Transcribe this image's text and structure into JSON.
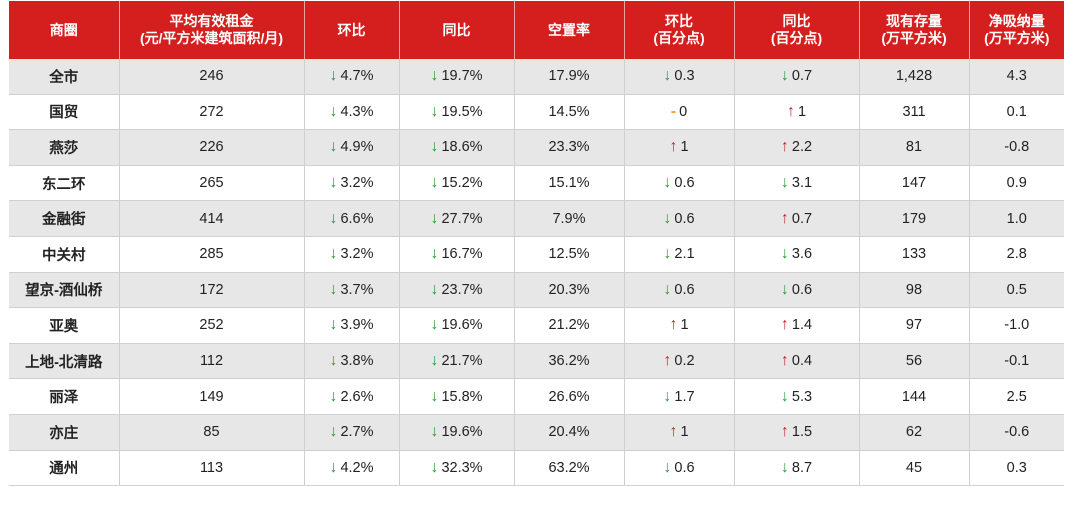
{
  "colors": {
    "header_bg": "#d51f1f",
    "down": "#2a9d3a",
    "up": "#c4262e",
    "flat": "#f0a030",
    "row_shade": "#e7e7e7"
  },
  "headers": [
    [
      "商圈"
    ],
    [
      "平均有效租金",
      "(元/平方米建筑面积/月)"
    ],
    [
      "环比"
    ],
    [
      "同比"
    ],
    [
      "空置率"
    ],
    [
      "环比",
      "(百分点)"
    ],
    [
      "同比",
      "(百分点)"
    ],
    [
      "现有存量",
      "(万平方米)"
    ],
    [
      "净吸纳量",
      "(万平方米)"
    ]
  ],
  "rows": [
    {
      "area": "全市",
      "rent": "246",
      "rent_mom": {
        "dir": "down",
        "val": "4.7%"
      },
      "rent_yoy": {
        "dir": "down",
        "val": "19.7%"
      },
      "vacancy": "17.9%",
      "vac_mom": {
        "dir": "down",
        "val": "0.3"
      },
      "vac_yoy": {
        "dir": "down",
        "val": "0.7"
      },
      "stock": "1,428",
      "absorption": "4.3"
    },
    {
      "area": "国贸",
      "rent": "272",
      "rent_mom": {
        "dir": "down",
        "val": "4.3%"
      },
      "rent_yoy": {
        "dir": "down",
        "val": "19.5%"
      },
      "vacancy": "14.5%",
      "vac_mom": {
        "dir": "flat",
        "val": "0"
      },
      "vac_yoy": {
        "dir": "up",
        "val": "1"
      },
      "stock": "311",
      "absorption": "0.1"
    },
    {
      "area": "燕莎",
      "rent": "226",
      "rent_mom": {
        "dir": "down",
        "val": "4.9%"
      },
      "rent_yoy": {
        "dir": "down",
        "val": "18.6%"
      },
      "vacancy": "23.3%",
      "vac_mom": {
        "dir": "up",
        "val": "1"
      },
      "vac_yoy": {
        "dir": "up",
        "val": "2.2"
      },
      "stock": "81",
      "absorption": "-0.8"
    },
    {
      "area": "东二环",
      "rent": "265",
      "rent_mom": {
        "dir": "down",
        "val": "3.2%"
      },
      "rent_yoy": {
        "dir": "down",
        "val": "15.2%"
      },
      "vacancy": "15.1%",
      "vac_mom": {
        "dir": "down",
        "val": "0.6"
      },
      "vac_yoy": {
        "dir": "down",
        "val": "3.1"
      },
      "stock": "147",
      "absorption": "0.9"
    },
    {
      "area": "金融街",
      "rent": "414",
      "rent_mom": {
        "dir": "down",
        "val": "6.6%"
      },
      "rent_yoy": {
        "dir": "down",
        "val": "27.7%"
      },
      "vacancy": "7.9%",
      "vac_mom": {
        "dir": "down",
        "val": "0.6"
      },
      "vac_yoy": {
        "dir": "up",
        "val": "0.7"
      },
      "stock": "179",
      "absorption": "1.0"
    },
    {
      "area": "中关村",
      "rent": "285",
      "rent_mom": {
        "dir": "down",
        "val": "3.2%"
      },
      "rent_yoy": {
        "dir": "down",
        "val": "16.7%"
      },
      "vacancy": "12.5%",
      "vac_mom": {
        "dir": "down",
        "val": "2.1"
      },
      "vac_yoy": {
        "dir": "down",
        "val": "3.6"
      },
      "stock": "133",
      "absorption": "2.8"
    },
    {
      "area": "望京-酒仙桥",
      "rent": "172",
      "rent_mom": {
        "dir": "down",
        "val": "3.7%"
      },
      "rent_yoy": {
        "dir": "down",
        "val": "23.7%"
      },
      "vacancy": "20.3%",
      "vac_mom": {
        "dir": "down",
        "val": "0.6"
      },
      "vac_yoy": {
        "dir": "down",
        "val": "0.6"
      },
      "stock": "98",
      "absorption": "0.5"
    },
    {
      "area": "亚奥",
      "rent": "252",
      "rent_mom": {
        "dir": "down",
        "val": "3.9%"
      },
      "rent_yoy": {
        "dir": "down",
        "val": "19.6%"
      },
      "vacancy": "21.2%",
      "vac_mom": {
        "dir": "up",
        "val": "1"
      },
      "vac_yoy": {
        "dir": "up",
        "val": "1.4"
      },
      "stock": "97",
      "absorption": "-1.0"
    },
    {
      "area": "上地-北清路",
      "rent": "112",
      "rent_mom": {
        "dir": "down",
        "val": "3.8%"
      },
      "rent_yoy": {
        "dir": "down",
        "val": "21.7%"
      },
      "vacancy": "36.2%",
      "vac_mom": {
        "dir": "up",
        "val": "0.2"
      },
      "vac_yoy": {
        "dir": "up",
        "val": "0.4"
      },
      "stock": "56",
      "absorption": "-0.1"
    },
    {
      "area": "丽泽",
      "rent": "149",
      "rent_mom": {
        "dir": "down",
        "val": "2.6%"
      },
      "rent_yoy": {
        "dir": "down",
        "val": "15.8%"
      },
      "vacancy": "26.6%",
      "vac_mom": {
        "dir": "down",
        "val": "1.7"
      },
      "vac_yoy": {
        "dir": "down",
        "val": "5.3"
      },
      "stock": "144",
      "absorption": "2.5"
    },
    {
      "area": "亦庄",
      "rent": "85",
      "rent_mom": {
        "dir": "down",
        "val": "2.7%"
      },
      "rent_yoy": {
        "dir": "down",
        "val": "19.6%"
      },
      "vacancy": "20.4%",
      "vac_mom": {
        "dir": "up",
        "val": "1"
      },
      "vac_yoy": {
        "dir": "up",
        "val": "1.5"
      },
      "stock": "62",
      "absorption": "-0.6"
    },
    {
      "area": "通州",
      "rent": "113",
      "rent_mom": {
        "dir": "down",
        "val": "4.2%"
      },
      "rent_yoy": {
        "dir": "down",
        "val": "32.3%"
      },
      "vacancy": "63.2%",
      "vac_mom": {
        "dir": "down",
        "val": "0.6"
      },
      "vac_yoy": {
        "dir": "down",
        "val": "8.7"
      },
      "stock": "45",
      "absorption": "0.3"
    }
  ]
}
